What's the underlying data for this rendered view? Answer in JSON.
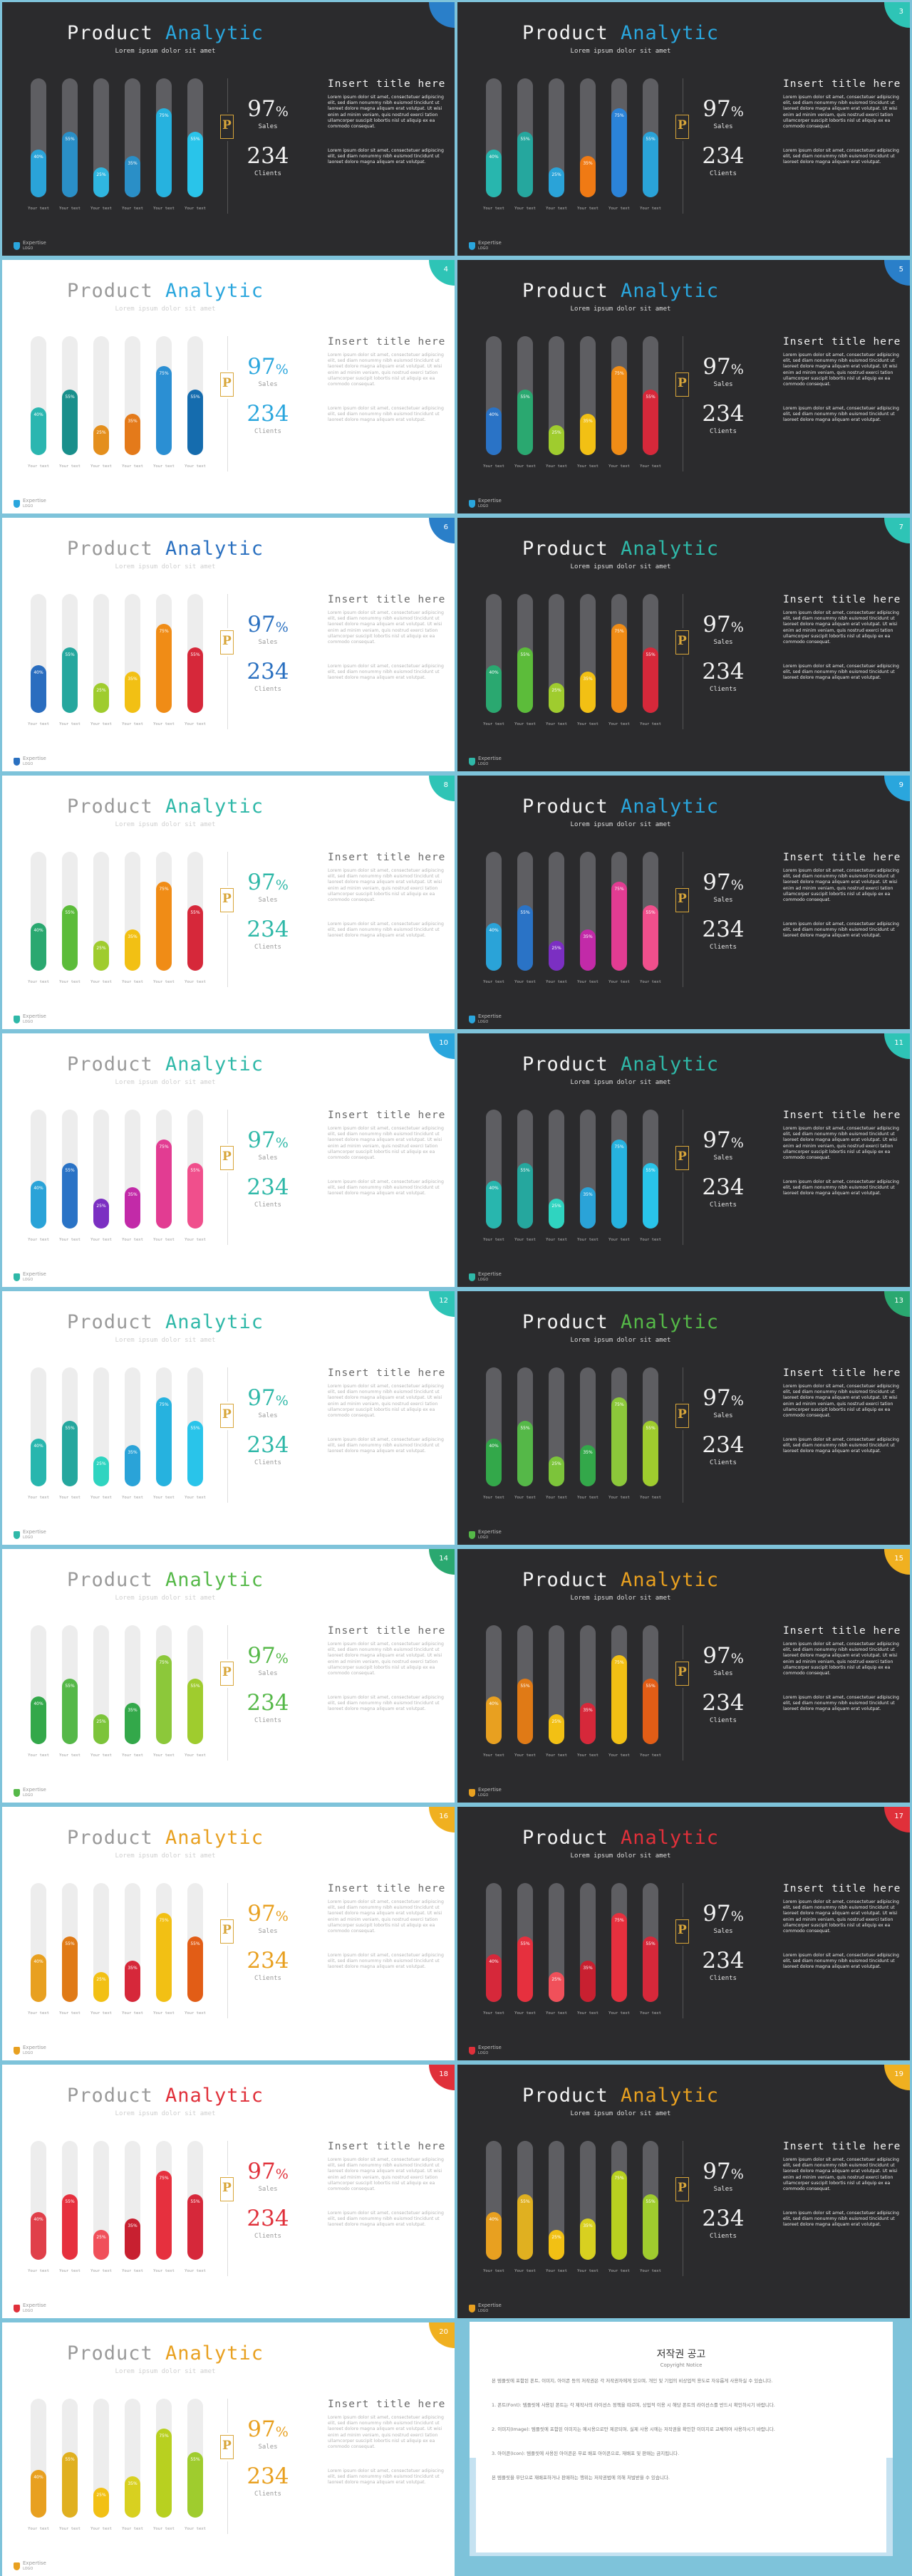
{
  "slide_text": {
    "title_word1": "Product",
    "title_word2": "Analytic",
    "subtitle": "Lorem ipsum dolor sit amet",
    "insert_title": "Insert title here",
    "percent_value": "97",
    "percent_sign": "%",
    "sales_label": "Sales",
    "clients_value": "234",
    "clients_label": "Clients",
    "bar_label": "Your text",
    "emblem_letter": "P",
    "paragraph1": "Lorem ipsum dolor sit amet, consectetuer adipiscing elit, sed diam nonummy nibh euismod tincidunt ut laoreet dolore magna aliquam erat volutpat. Ut wisi enim ad minim veniam, quis nostrud exerci tation ullamcorper suscipit lobortis nisl ut aliquip ex ea commodo consequat.",
    "paragraph2": "Lorem ipsum dolor sit amet, consectetuer adipiscing elit, sed diam nonummy nibh euismod tincidunt ut laoreet dolore magna aliquam erat volutpat.",
    "logo_name": "Expertise",
    "logo_sub": "LOGO"
  },
  "bar_values": [
    40,
    55,
    25,
    35,
    75,
    55
  ],
  "slides": [
    {
      "number": "",
      "theme": "dark",
      "accent": "#2aa6dd",
      "badge": "#2a7fc9",
      "bars": [
        "#2aa3d8",
        "#2a8fc7",
        "#2fb6e0",
        "#2a8fc7",
        "#26b2df",
        "#29c4ea"
      ]
    },
    {
      "number": "3",
      "theme": "dark",
      "accent": "#2aa6dd",
      "badge": "#2ec4b6",
      "bars": [
        "#28b6ae",
        "#25a79e",
        "#2aa3d8",
        "#f07a14",
        "#2b83d8",
        "#2aa3d8"
      ]
    },
    {
      "number": "4",
      "theme": "light",
      "accent": "#2aa6dd",
      "badge": "#2ec4b6",
      "bars": [
        "#2bb6b0",
        "#198f8b",
        "#e48f1d",
        "#e47a1a",
        "#2b8fd3",
        "#156cae"
      ]
    },
    {
      "number": "5",
      "theme": "dark",
      "accent": "#2aa6dd",
      "badge": "#2a7fc9",
      "bars": [
        "#2a73c6",
        "#2aa870",
        "#9fcc2e",
        "#f2c014",
        "#f08c16",
        "#d6283a"
      ]
    },
    {
      "number": "6",
      "theme": "light",
      "accent": "#2a70c0",
      "badge": "#2a7fc9",
      "bars": [
        "#2a6dbf",
        "#25a79e",
        "#9fcc2e",
        "#f2c014",
        "#f08c16",
        "#d6283a"
      ]
    },
    {
      "number": "7",
      "theme": "dark",
      "accent": "#2fb8a8",
      "badge": "#2ec4b6",
      "bars": [
        "#2aa870",
        "#5cbc3a",
        "#9fcc2e",
        "#f2c014",
        "#f08c16",
        "#d6283a"
      ]
    },
    {
      "number": "8",
      "theme": "light",
      "accent": "#2fb8a8",
      "badge": "#2ec4b6",
      "bars": [
        "#2aa870",
        "#5cbc3a",
        "#9fcc2e",
        "#f2c014",
        "#f08c16",
        "#d6283a"
      ]
    },
    {
      "number": "9",
      "theme": "dark",
      "accent": "#2aa6dd",
      "badge": "#2aa6dd",
      "bars": [
        "#2aa3d8",
        "#2a73c6",
        "#7b2fc2",
        "#c22aa8",
        "#e23c92",
        "#f04f8c"
      ]
    },
    {
      "number": "10",
      "theme": "light",
      "accent": "#2fb8a8",
      "badge": "#2aa6dd",
      "bars": [
        "#2aa3d8",
        "#2a73c6",
        "#7b2fc2",
        "#c22aa8",
        "#e23c92",
        "#f04f8c"
      ]
    },
    {
      "number": "11",
      "theme": "dark",
      "accent": "#2fb8a8",
      "badge": "#2ec4b6",
      "bars": [
        "#28b6ae",
        "#25a79e",
        "#2fd4c0",
        "#2aa3d8",
        "#26b2df",
        "#29c4ea"
      ]
    },
    {
      "number": "12",
      "theme": "light",
      "accent": "#2fb8a8",
      "badge": "#2ec4b6",
      "bars": [
        "#28b6ae",
        "#25a79e",
        "#2fd4c0",
        "#2aa3d8",
        "#26b2df",
        "#29c4ea"
      ]
    },
    {
      "number": "13",
      "theme": "dark",
      "accent": "#55b848",
      "badge": "#2aa870",
      "bars": [
        "#33a84a",
        "#55b848",
        "#7cc43a",
        "#33a84a",
        "#8cc83a",
        "#9fcc2e"
      ]
    },
    {
      "number": "14",
      "theme": "light",
      "accent": "#55b848",
      "badge": "#2aa870",
      "bars": [
        "#33a84a",
        "#55b848",
        "#7cc43a",
        "#33a84a",
        "#8cc83a",
        "#9fcc2e"
      ]
    },
    {
      "number": "15",
      "theme": "dark",
      "accent": "#e8a020",
      "badge": "#f0b020",
      "bars": [
        "#e8a020",
        "#e07a16",
        "#f2c014",
        "#d6283a",
        "#f2c014",
        "#e25d16"
      ]
    },
    {
      "number": "16",
      "theme": "light",
      "accent": "#e8a020",
      "badge": "#f0b020",
      "bars": [
        "#e8a020",
        "#e07a16",
        "#f2c014",
        "#d6283a",
        "#f2c014",
        "#e25d16"
      ]
    },
    {
      "number": "17",
      "theme": "dark",
      "accent": "#e0303a",
      "badge": "#e0303a",
      "bars": [
        "#d6283a",
        "#e6303e",
        "#f0505a",
        "#c82030",
        "#e6303e",
        "#d6283a"
      ]
    },
    {
      "number": "18",
      "theme": "light",
      "accent": "#e0303a",
      "badge": "#e0303a",
      "bars": [
        "#e0404a",
        "#e6303e",
        "#f0505a",
        "#c82030",
        "#e6303e",
        "#d6283a"
      ]
    },
    {
      "number": "19",
      "theme": "dark",
      "accent": "#e8a020",
      "badge": "#f0b020",
      "bars": [
        "#e8a020",
        "#e0b020",
        "#f2c014",
        "#d8d020",
        "#b8d020",
        "#9fcc2e"
      ]
    },
    {
      "number": "20",
      "theme": "light",
      "accent": "#e8a020",
      "badge": "#f0b020",
      "bars": [
        "#e8a020",
        "#e0b020",
        "#f2c014",
        "#d8d020",
        "#b8d020",
        "#9fcc2e"
      ]
    }
  ],
  "notice": {
    "title": "저작권 공고",
    "subtitle": "Copyright Notice",
    "paragraphs": [
      "본 템플릿에 포함된 폰트, 이미지, 아이콘 등의 저작권은 각 저작권자에게 있으며, 개인 및 기업의 비상업적 용도로 자유롭게 사용하실 수 있습니다.",
      "1. 폰트(Font): 템플릿에 사용된 폰트는 각 제작사의 라이선스 정책을 따르며, 상업적 이용 시 해당 폰트의 라이선스를 반드시 확인하시기 바랍니다.",
      "2. 이미지(Image): 템플릿에 포함된 이미지는 예시용으로만 제공되며, 실제 사용 시에는 저작권을 확인한 이미지로 교체하여 사용하시기 바랍니다.",
      "3. 아이콘(Icon): 템플릿에 사용된 아이콘은 무료 배포 아이콘으로, 재배포 및 판매는 금지됩니다.",
      "본 템플릿을 무단으로 재배포하거나 판매하는 행위는 저작권법에 의해 처벌받을 수 있습니다."
    ]
  }
}
